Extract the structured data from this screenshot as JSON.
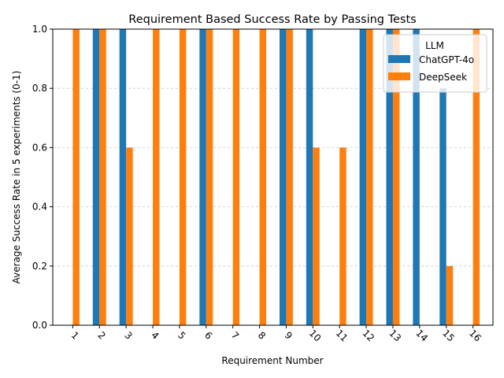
{
  "chart_data": {
    "type": "bar",
    "title": "Requirement Based Success Rate by Passing Tests",
    "xlabel": "Requirement Number",
    "ylabel": "Average Success Rate in 5 experiments (0-1)",
    "categories": [
      "1",
      "2",
      "3",
      "4",
      "5",
      "6",
      "7",
      "8",
      "9",
      "10",
      "11",
      "12",
      "13",
      "14",
      "15",
      "16"
    ],
    "series": [
      {
        "name": "ChatGPT-4o",
        "color": "#1f77b4",
        "values": [
          0,
          1.0,
          1.0,
          0,
          0,
          1.0,
          0,
          0,
          1.0,
          1.0,
          0,
          1.0,
          1.0,
          1.0,
          0.8,
          0
        ]
      },
      {
        "name": "DeepSeek",
        "color": "#ff7f0e",
        "values": [
          1.0,
          1.0,
          0.6,
          1.0,
          1.0,
          1.0,
          1.0,
          1.0,
          1.0,
          0.6,
          0.6,
          1.0,
          1.0,
          0,
          0.2,
          1.0
        ]
      }
    ],
    "ylim": [
      0,
      1.0
    ],
    "yticks": [
      0.0,
      0.2,
      0.4,
      0.6,
      0.8,
      1.0
    ],
    "ytick_labels": [
      "0.0",
      "0.2",
      "0.4",
      "0.6",
      "0.8",
      "1.0"
    ],
    "grid": "y-dashed",
    "legend": {
      "title": "LLM",
      "placement": "top-right"
    }
  }
}
